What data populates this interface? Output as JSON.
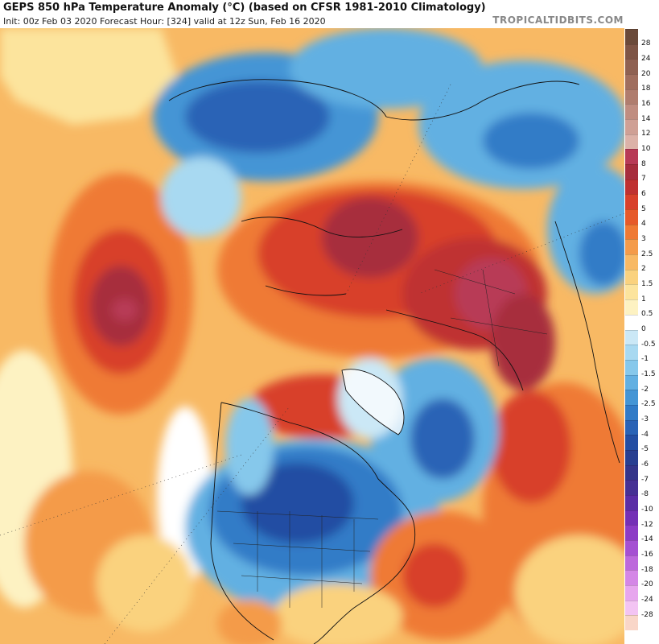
{
  "header": {
    "title": "GEPS 850 hPa Temperature Anomaly (°C) (based on CFSR 1981-2010 Climatology)",
    "subtitle": "Init: 00z Feb 03 2020   Forecast Hour: [324]   valid at 12z Sun, Feb 16 2020",
    "brand": "TROPICALTIDBITS.COM"
  },
  "colorbar": {
    "labels": [
      "28",
      "24",
      "20",
      "18",
      "16",
      "14",
      "12",
      "10",
      "8",
      "7",
      "6",
      "5",
      "4",
      "3",
      "2.5",
      "2",
      "1.5",
      "1",
      "0.5",
      "0",
      "-0.5",
      "-1",
      "-1.5",
      "-2",
      "-2.5",
      "-3",
      "-4",
      "-5",
      "-6",
      "-7",
      "-8",
      "-10",
      "-12",
      "-14",
      "-16",
      "-18",
      "-20",
      "-24",
      "-28"
    ],
    "colors": [
      "#6b4a3a",
      "#7e5546",
      "#8f6152",
      "#a06e5e",
      "#b07d6e",
      "#c08d80",
      "#cfa095",
      "#dcb2a8",
      "#b83a56",
      "#a72d3d",
      "#bf3131",
      "#d8402b",
      "#e65a2a",
      "#ef7a34",
      "#f49b4a",
      "#f8b964",
      "#fad27e",
      "#fce49d",
      "#fdf2c2",
      "#ffffff",
      "#cbe8f6",
      "#a8d9f1",
      "#86c8eb",
      "#62b0e2",
      "#4495d5",
      "#317bc7",
      "#2a63b6",
      "#244ea3",
      "#283f91",
      "#34358a",
      "#463194",
      "#5b2ea6",
      "#7430b6",
      "#8c3cc6",
      "#a550d2",
      "#bd69dc",
      "#d487e6",
      "#e7a6ee",
      "#f3c4f3"
    ]
  },
  "map": {
    "legend_unit": "°C"
  }
}
